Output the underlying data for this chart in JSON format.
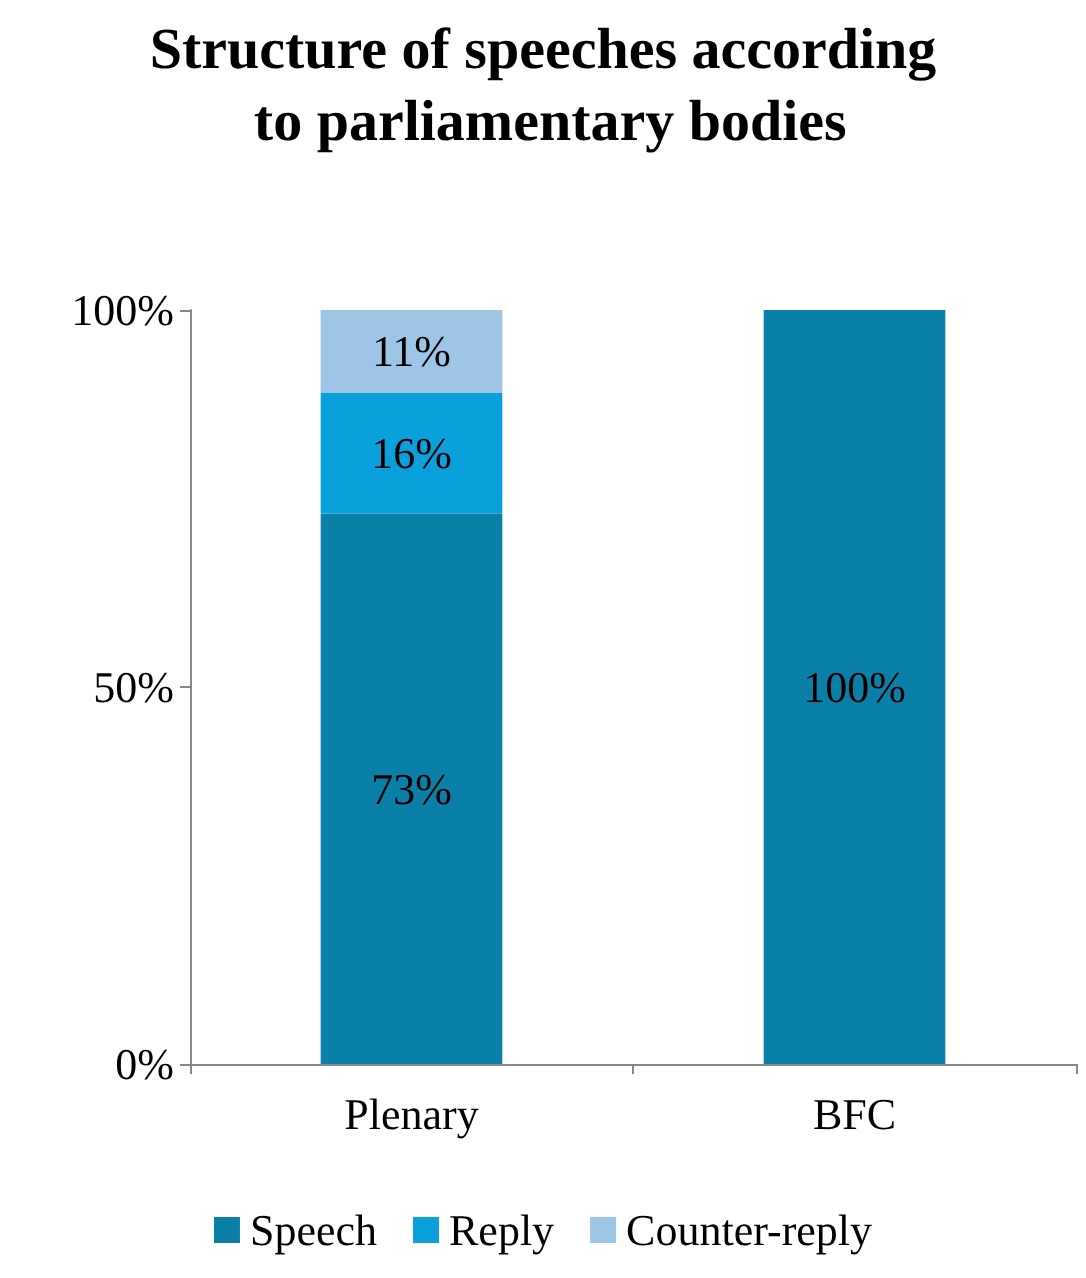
{
  "chart_data": {
    "type": "bar",
    "title": "Structure of speeches according to parliamentary bodies",
    "categories": [
      "Plenary",
      "BFC"
    ],
    "stacked": true,
    "series": [
      {
        "name": "Speech",
        "color": "#0a7fa8",
        "values": [
          73,
          100
        ],
        "value_labels": [
          "73%",
          "100%"
        ]
      },
      {
        "name": "Reply",
        "color": "#0aa0dc",
        "values": [
          16,
          0
        ],
        "value_labels": [
          "16%",
          null
        ]
      },
      {
        "name": "Counter-reply",
        "color": "#9dc6e6",
        "values": [
          11,
          0
        ],
        "value_labels": [
          "11%",
          null
        ]
      }
    ],
    "ylim": [
      0,
      100
    ],
    "yticks": [
      {
        "value": 0,
        "label": "0%"
      },
      {
        "value": 50,
        "label": "50%"
      },
      {
        "value": 100,
        "label": "100%"
      }
    ],
    "grid": false,
    "legend": "bottom"
  }
}
